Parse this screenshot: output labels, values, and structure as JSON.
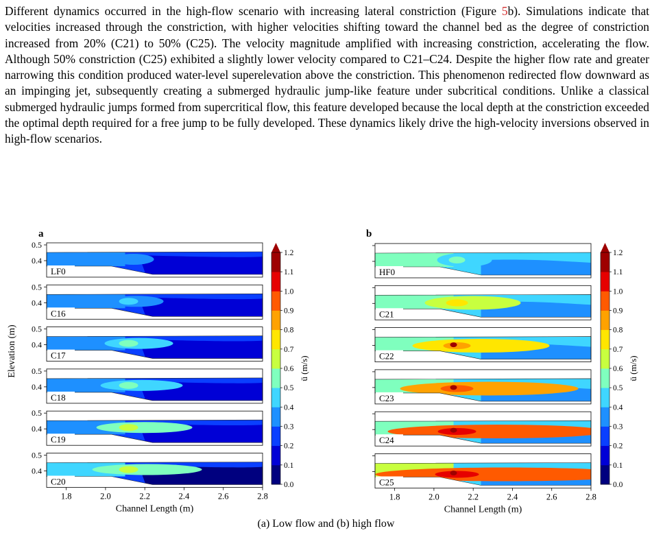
{
  "paragraph": {
    "text_before_ref": "Different dynamics occurred in the high-flow scenario with increasing lateral constriction (Figure ",
    "ref_link": "5",
    "text_after_ref": "b). Simulations indicate that velocities increased through the constriction, with higher velocities shifting toward the channel bed as the degree of constriction increased from 20% (C21) to 50% (C25). The velocity magnitude amplified with increasing constriction, accelerating the flow. Although 50% constriction (C25) exhibited a slightly lower velocity compared to C21–C24. Despite the higher flow rate and greater narrowing this condition produced water-level superelevation above the constriction. This phenomenon redirected flow downward as an impinging jet, subsequently creating a submerged hydraulic jump-like feature under subcritical conditions. Unlike a classical submerged hydraulic jumps formed from supercritical flow, this feature developed because the local depth at the constriction exceeded the optimal depth required for a free jump to be fully developed. These dynamics likely drive the high-velocity inversions observed in high-flow scenarios."
  },
  "colors": {
    "ref_link": "#d32f2f",
    "colormap": [
      "#00007f",
      "#0000d6",
      "#0a3fff",
      "#1e90ff",
      "#3fd6ff",
      "#7fffbe",
      "#c8ff3f",
      "#ffe600",
      "#ffa200",
      "#ff5a00",
      "#e60000",
      "#9e0000"
    ]
  },
  "chart_data": [
    {
      "type": "contour",
      "panel_label": "a",
      "ylabel": "Elevation (m)",
      "xlabel": "Channel Length (m)",
      "xlim": [
        1.7,
        2.8
      ],
      "ylim": [
        0.35,
        0.5
      ],
      "xticks": [
        "1.8",
        "2.0",
        "2.2",
        "2.4",
        "2.6",
        "2.8"
      ],
      "yticks": [
        "0.4",
        "0.5"
      ],
      "subplots": [
        "LF0",
        "C16",
        "C17",
        "C18",
        "C19",
        "C20"
      ],
      "colorbar": {
        "label": "ū (m/s)",
        "range": [
          0.0,
          1.2
        ],
        "ticks": [
          "0.0",
          "0.1",
          "0.2",
          "0.3",
          "0.4",
          "0.5",
          "0.6",
          "0.7",
          "0.8",
          "0.9",
          "1.0",
          "1.1",
          "1.2"
        ]
      }
    },
    {
      "type": "contour",
      "panel_label": "b",
      "xlabel": "Channel Length (m)",
      "xlim": [
        1.7,
        2.8
      ],
      "xticks": [
        "1.8",
        "2.0",
        "2.2",
        "2.4",
        "2.6",
        "2.8"
      ],
      "subplots": [
        "HF0",
        "C21",
        "C22",
        "C23",
        "C24",
        "C25"
      ],
      "colorbar": {
        "label": "ū (m/s)",
        "range": [
          0.0,
          1.2
        ],
        "ticks": [
          "0.0",
          "0.1",
          "0.2",
          "0.3",
          "0.4",
          "0.5",
          "0.6",
          "0.7",
          "0.8",
          "0.9",
          "1.0",
          "1.1",
          "1.2"
        ]
      }
    }
  ],
  "caption": "(a) Low flow and (b) high flow"
}
